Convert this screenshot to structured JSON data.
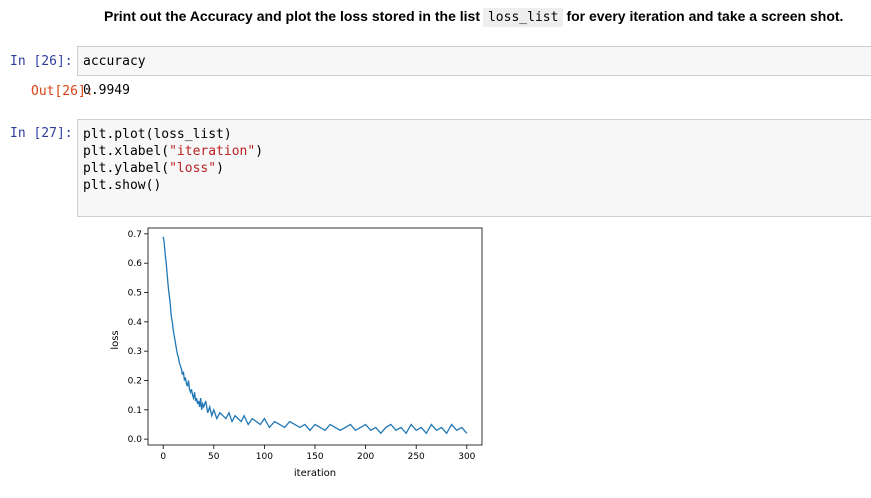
{
  "markdown": {
    "text_before": "Print out the Accuracy and plot the loss stored in the list",
    "code_term": "loss_list",
    "text_after": "for every iteration and take a screen shot."
  },
  "cells": [
    {
      "in_prompt": "In [26]:",
      "code_lines": [
        "accuracy"
      ],
      "out_prompt": "Out[26]:",
      "output": "0.9949"
    },
    {
      "in_prompt": "In [27]:",
      "code": {
        "l1": "plt.plot(loss_list)",
        "l2a": "plt.xlabel(",
        "l2s": "\"iteration\"",
        "l2b": ")",
        "l3a": "plt.ylabel(",
        "l3s": "\"loss\"",
        "l3b": ")",
        "l4": "plt.show()"
      }
    }
  ],
  "chart_data": {
    "type": "line",
    "xlabel": "iteration",
    "ylabel": "loss",
    "xlim": [
      -15,
      315
    ],
    "ylim": [
      -0.02,
      0.72
    ],
    "xticks": [
      0,
      50,
      100,
      150,
      200,
      250,
      300
    ],
    "yticks": [
      0.0,
      0.1,
      0.2,
      0.3,
      0.4,
      0.5,
      0.6,
      0.7
    ],
    "yticklabels": [
      "0.0",
      "0.1",
      "0.2",
      "0.3",
      "0.4",
      "0.5",
      "0.6",
      "0.7"
    ],
    "line_color": "#1f77b4",
    "series": [
      {
        "x": [
          0,
          1,
          2,
          3,
          4,
          5,
          6,
          7,
          8,
          9,
          10,
          11,
          12,
          13,
          14,
          15,
          16,
          17,
          18,
          19,
          20,
          21,
          22,
          23,
          24,
          25,
          26,
          27,
          28,
          29,
          30,
          31,
          32,
          33,
          34,
          35,
          36,
          37,
          38,
          39,
          40,
          42,
          44,
          46,
          48,
          50,
          53,
          56,
          59,
          62,
          65,
          68,
          71,
          74,
          77,
          80,
          84,
          88,
          92,
          96,
          100,
          105,
          110,
          115,
          120,
          125,
          130,
          135,
          140,
          145,
          150,
          155,
          160,
          165,
          170,
          175,
          180,
          185,
          190,
          195,
          200,
          205,
          210,
          215,
          220,
          225,
          230,
          235,
          240,
          245,
          250,
          255,
          260,
          265,
          270,
          275,
          280,
          285,
          290,
          295,
          300
        ],
        "y": [
          0.69,
          0.67,
          0.63,
          0.6,
          0.56,
          0.52,
          0.49,
          0.46,
          0.42,
          0.4,
          0.37,
          0.35,
          0.33,
          0.31,
          0.29,
          0.28,
          0.26,
          0.25,
          0.24,
          0.22,
          0.23,
          0.2,
          0.21,
          0.19,
          0.18,
          0.2,
          0.17,
          0.16,
          0.17,
          0.15,
          0.14,
          0.16,
          0.13,
          0.14,
          0.12,
          0.13,
          0.11,
          0.14,
          0.1,
          0.12,
          0.11,
          0.13,
          0.09,
          0.11,
          0.08,
          0.1,
          0.07,
          0.09,
          0.08,
          0.07,
          0.09,
          0.06,
          0.08,
          0.07,
          0.06,
          0.08,
          0.05,
          0.07,
          0.06,
          0.05,
          0.07,
          0.04,
          0.06,
          0.05,
          0.04,
          0.06,
          0.05,
          0.04,
          0.05,
          0.03,
          0.05,
          0.04,
          0.03,
          0.05,
          0.04,
          0.03,
          0.04,
          0.05,
          0.03,
          0.04,
          0.05,
          0.03,
          0.04,
          0.02,
          0.04,
          0.05,
          0.03,
          0.04,
          0.02,
          0.05,
          0.03,
          0.04,
          0.02,
          0.05,
          0.03,
          0.04,
          0.02,
          0.05,
          0.03,
          0.04,
          0.02
        ]
      }
    ]
  }
}
